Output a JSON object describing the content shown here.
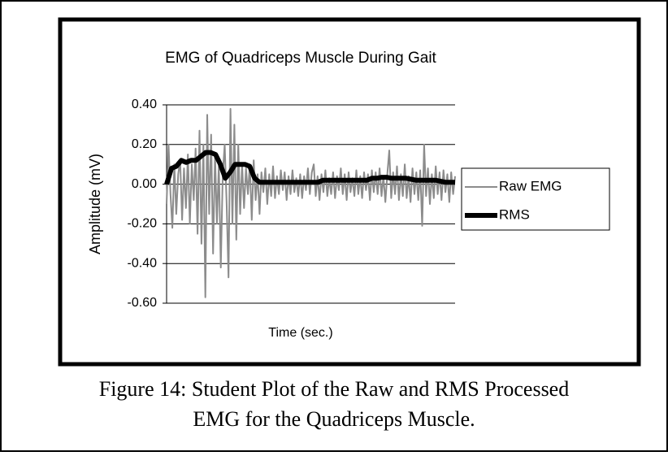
{
  "chart_data": {
    "type": "line",
    "title": "EMG of Quadriceps Muscle During Gait",
    "ylabel": "Amplitude (mV)",
    "xlabel": "Time (sec.)",
    "ylim": [
      -0.6,
      0.4
    ],
    "yticks": [
      {
        "value": 0.4,
        "label": "0.40"
      },
      {
        "value": 0.2,
        "label": "0.20"
      },
      {
        "value": 0,
        "label": "0.00"
      },
      {
        "value": -0.2,
        "label": "-0.20"
      },
      {
        "value": -0.4,
        "label": "-0.40"
      },
      {
        "value": -0.6,
        "label": "-0.60"
      }
    ],
    "grid": true,
    "legend": "right",
    "series": [
      {
        "name": "Raw EMG",
        "color": "#8c8c8c",
        "values": [
          -0.1,
          0.2,
          -0.05,
          -0.22,
          0.1,
          -0.15,
          0.05,
          0.12,
          -0.18,
          0.08,
          -0.12,
          0.15,
          -0.2,
          0.1,
          -0.08,
          0.18,
          -0.25,
          0.27,
          -0.3,
          0.2,
          -0.57,
          0.35,
          -0.15,
          0.25,
          -0.35,
          0.15,
          -0.2,
          0.1,
          -0.42,
          0.05,
          0.2,
          -0.1,
          -0.47,
          0.38,
          -0.2,
          0.3,
          -0.28,
          0.2,
          -0.15,
          0.1,
          -0.12,
          0.08,
          -0.05,
          0.1,
          -0.18,
          0.12,
          -0.08,
          0.05,
          -0.15,
          0.06,
          -0.04,
          0.08,
          -0.1,
          0.05,
          -0.06,
          0.09,
          -0.07,
          0.04,
          -0.05,
          0.07,
          -0.03,
          0.06,
          -0.08,
          0.04,
          -0.05,
          0.07,
          -0.04,
          0.03,
          -0.06,
          0.05,
          -0.07,
          0.04,
          -0.03,
          0.08,
          -0.05,
          0.06,
          0.1,
          -0.06,
          0.04,
          -0.08,
          0.05,
          -0.04,
          0.07,
          -0.06,
          0.03,
          -0.05,
          0.06,
          -0.07,
          0.04,
          -0.03,
          0.08,
          -0.05,
          0.05,
          -0.08,
          0.06,
          -0.04,
          0.03,
          -0.06,
          0.07,
          -0.05,
          0.04,
          -0.07,
          0.06,
          -0.03,
          0.05,
          -0.08,
          0.07,
          -0.04,
          0.06,
          -0.05,
          0.08,
          -0.06,
          0.04,
          -0.09,
          0.05,
          0.17,
          -0.07,
          0.06,
          -0.05,
          0.09,
          -0.08,
          0.05,
          -0.06,
          0.1,
          -0.07,
          0.04,
          -0.09,
          0.08,
          -0.05,
          0.06,
          -0.08,
          0.07,
          -0.21,
          0.2,
          -0.06,
          0.08,
          -0.1,
          0.05,
          -0.07,
          0.09,
          -0.05,
          0.06,
          -0.08,
          0.07,
          -0.04,
          0.05,
          -0.09,
          0.06,
          -0.05,
          0.04
        ]
      },
      {
        "name": "RMS",
        "color": "#000000",
        "values": [
          0.0,
          0.08,
          0.09,
          0.12,
          0.11,
          0.12,
          0.12,
          0.14,
          0.16,
          0.16,
          0.15,
          0.1,
          0.03,
          0.06,
          0.1,
          0.1,
          0.1,
          0.09,
          0.03,
          0.01,
          0.01,
          0.01,
          0.01,
          0.01,
          0.01,
          0.01,
          0.01,
          0.01,
          0.01,
          0.01,
          0.01,
          0.01,
          0.02,
          0.02,
          0.02,
          0.02,
          0.02,
          0.02,
          0.02,
          0.02,
          0.02,
          0.02,
          0.03,
          0.03,
          0.035,
          0.035,
          0.03,
          0.03,
          0.03,
          0.03,
          0.025,
          0.02,
          0.02,
          0.02,
          0.02,
          0.02,
          0.015,
          0.01,
          0.01,
          0.01
        ]
      }
    ],
    "caption": [
      "Figure 14:  Student Plot of the Raw and RMS Processed",
      "EMG for the Quadriceps Muscle."
    ]
  }
}
